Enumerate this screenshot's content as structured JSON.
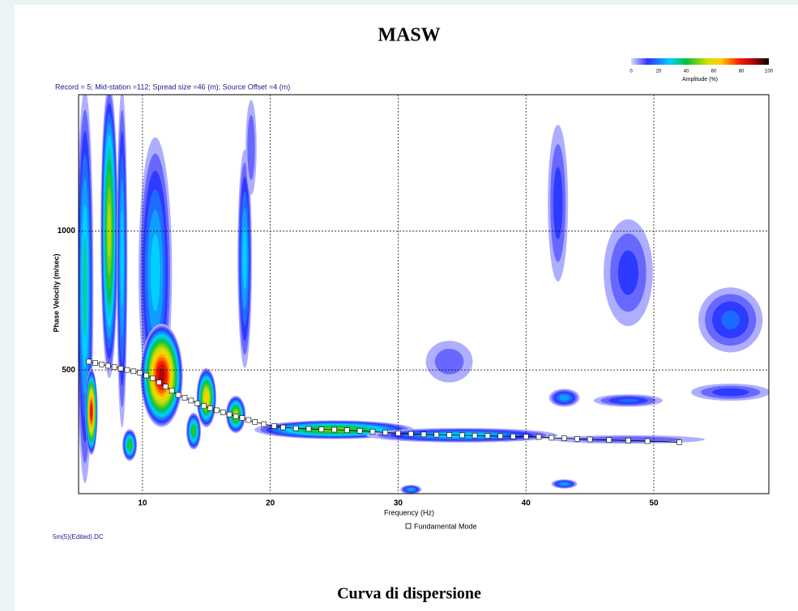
{
  "chart_data": {
    "type": "dispersion",
    "title": "MASW",
    "subtitle": "Record = 5; Mid-station =112; Spread size =46 (m); Source Offset =4 (m)",
    "caption": "Curva di dispersione",
    "footnote": "5m(5)(Edited).DC",
    "x_label": "Frequency (Hz)",
    "y_label": "Phase Velocity (m/sec)",
    "xlim": [
      5,
      59
    ],
    "ylim": [
      55,
      1490
    ],
    "xticks": [
      10,
      20,
      30,
      40,
      50
    ],
    "yticks": [
      500,
      1000
    ],
    "grid": true,
    "colorbar": {
      "label": "Amplitude (%)",
      "lim": [
        0,
        100
      ],
      "ticks": [
        0,
        20,
        40,
        60,
        80,
        100
      ],
      "stops": [
        {
          "value": 0,
          "color": "#d8d8ff"
        },
        {
          "value": 12,
          "color": "#3030ff"
        },
        {
          "value": 28,
          "color": "#00d0ff"
        },
        {
          "value": 40,
          "color": "#00c040"
        },
        {
          "value": 55,
          "color": "#d0e000"
        },
        {
          "value": 65,
          "color": "#ffd000"
        },
        {
          "value": 78,
          "color": "#ff2000"
        },
        {
          "value": 90,
          "color": "#a00000"
        },
        {
          "value": 100,
          "color": "#000000"
        }
      ]
    },
    "energy": [
      {
        "f": 5.5,
        "v": 800,
        "f_spread": 0.7,
        "v_spread": 750,
        "amplitude": 35
      },
      {
        "f": 6,
        "v": 350,
        "f_spread": 0.5,
        "v_spread": 160,
        "amplitude": 85
      },
      {
        "f": 7.4,
        "v": 1000,
        "f_spread": 0.7,
        "v_spread": 550,
        "amplitude": 55
      },
      {
        "f": 8.4,
        "v": 900,
        "f_spread": 0.45,
        "v_spread": 650,
        "amplitude": 30
      },
      {
        "f": 11,
        "v": 850,
        "f_spread": 1.4,
        "v_spread": 520,
        "amplitude": 30
      },
      {
        "f": 11.5,
        "v": 480,
        "f_spread": 1.7,
        "v_spread": 190,
        "amplitude": 90
      },
      {
        "f": 9,
        "v": 230,
        "f_spread": 0.6,
        "v_spread": 60,
        "amplitude": 45
      },
      {
        "f": 14,
        "v": 280,
        "f_spread": 0.6,
        "v_spread": 70,
        "amplitude": 45
      },
      {
        "f": 15,
        "v": 400,
        "f_spread": 0.8,
        "v_spread": 110,
        "amplitude": 65
      },
      {
        "f": 17.3,
        "v": 340,
        "f_spread": 0.8,
        "v_spread": 70,
        "amplitude": 55
      },
      {
        "f": 18,
        "v": 900,
        "f_spread": 0.6,
        "v_spread": 420,
        "amplitude": 30
      },
      {
        "f": 18.5,
        "v": 1300,
        "f_spread": 0.5,
        "v_spread": 200,
        "amplitude": 12
      },
      {
        "f": 25,
        "v": 285,
        "f_spread": 6.5,
        "v_spread": 35,
        "amplitude": 50
      },
      {
        "f": 35,
        "v": 265,
        "f_spread": 8,
        "v_spread": 28,
        "amplitude": 30
      },
      {
        "f": 48,
        "v": 250,
        "f_spread": 7,
        "v_spread": 18,
        "amplitude": 12
      },
      {
        "f": 43,
        "v": 400,
        "f_spread": 1.3,
        "v_spread": 35,
        "amplitude": 25
      },
      {
        "f": 48,
        "v": 390,
        "f_spread": 3,
        "v_spread": 25,
        "amplitude": 18
      },
      {
        "f": 56,
        "v": 420,
        "f_spread": 3.5,
        "v_spread": 35,
        "amplitude": 15
      },
      {
        "f": 42.5,
        "v": 1100,
        "f_spread": 0.9,
        "v_spread": 320,
        "amplitude": 15
      },
      {
        "f": 48,
        "v": 850,
        "f_spread": 2.2,
        "v_spread": 220,
        "amplitude": 14
      },
      {
        "f": 56,
        "v": 680,
        "f_spread": 2.8,
        "v_spread": 130,
        "amplitude": 18
      },
      {
        "f": 34,
        "v": 530,
        "f_spread": 2.2,
        "v_spread": 90,
        "amplitude": 10
      },
      {
        "f": 31,
        "v": 70,
        "f_spread": 0.9,
        "v_spread": 18,
        "amplitude": 25
      },
      {
        "f": 43,
        "v": 90,
        "f_spread": 1.1,
        "v_spread": 18,
        "amplitude": 25
      }
    ],
    "series": [
      {
        "name": "Fundamental Mode",
        "color": "#ffffff",
        "x": [
          5.8,
          6.3,
          6.8,
          7.3,
          7.8,
          8.3,
          8.8,
          9.3,
          9.8,
          10.3,
          10.8,
          11.3,
          11.8,
          12.3,
          12.8,
          13.3,
          13.8,
          14.3,
          14.8,
          15.3,
          15.8,
          16.3,
          16.8,
          17.3,
          17.8,
          18.3,
          18.8,
          19.5,
          20.3,
          21,
          22,
          23,
          24,
          25,
          26,
          27,
          28,
          29,
          30,
          31,
          32,
          33,
          34,
          35,
          36,
          37,
          38,
          39,
          40,
          41,
          42,
          43,
          44,
          45,
          46.5,
          48,
          49.5,
          52
        ],
        "values": [
          530,
          525,
          520,
          515,
          510,
          505,
          500,
          495,
          490,
          480,
          470,
          455,
          440,
          425,
          410,
          400,
          390,
          380,
          370,
          362,
          355,
          348,
          340,
          333,
          327,
          320,
          313,
          305,
          298,
          293,
          290,
          288,
          286,
          285,
          283,
          281,
          278,
          275,
          272,
          270,
          268,
          267,
          266,
          265,
          264,
          263,
          262,
          261,
          260,
          259,
          256,
          254,
          252,
          250,
          248,
          246,
          244,
          240
        ]
      }
    ]
  }
}
